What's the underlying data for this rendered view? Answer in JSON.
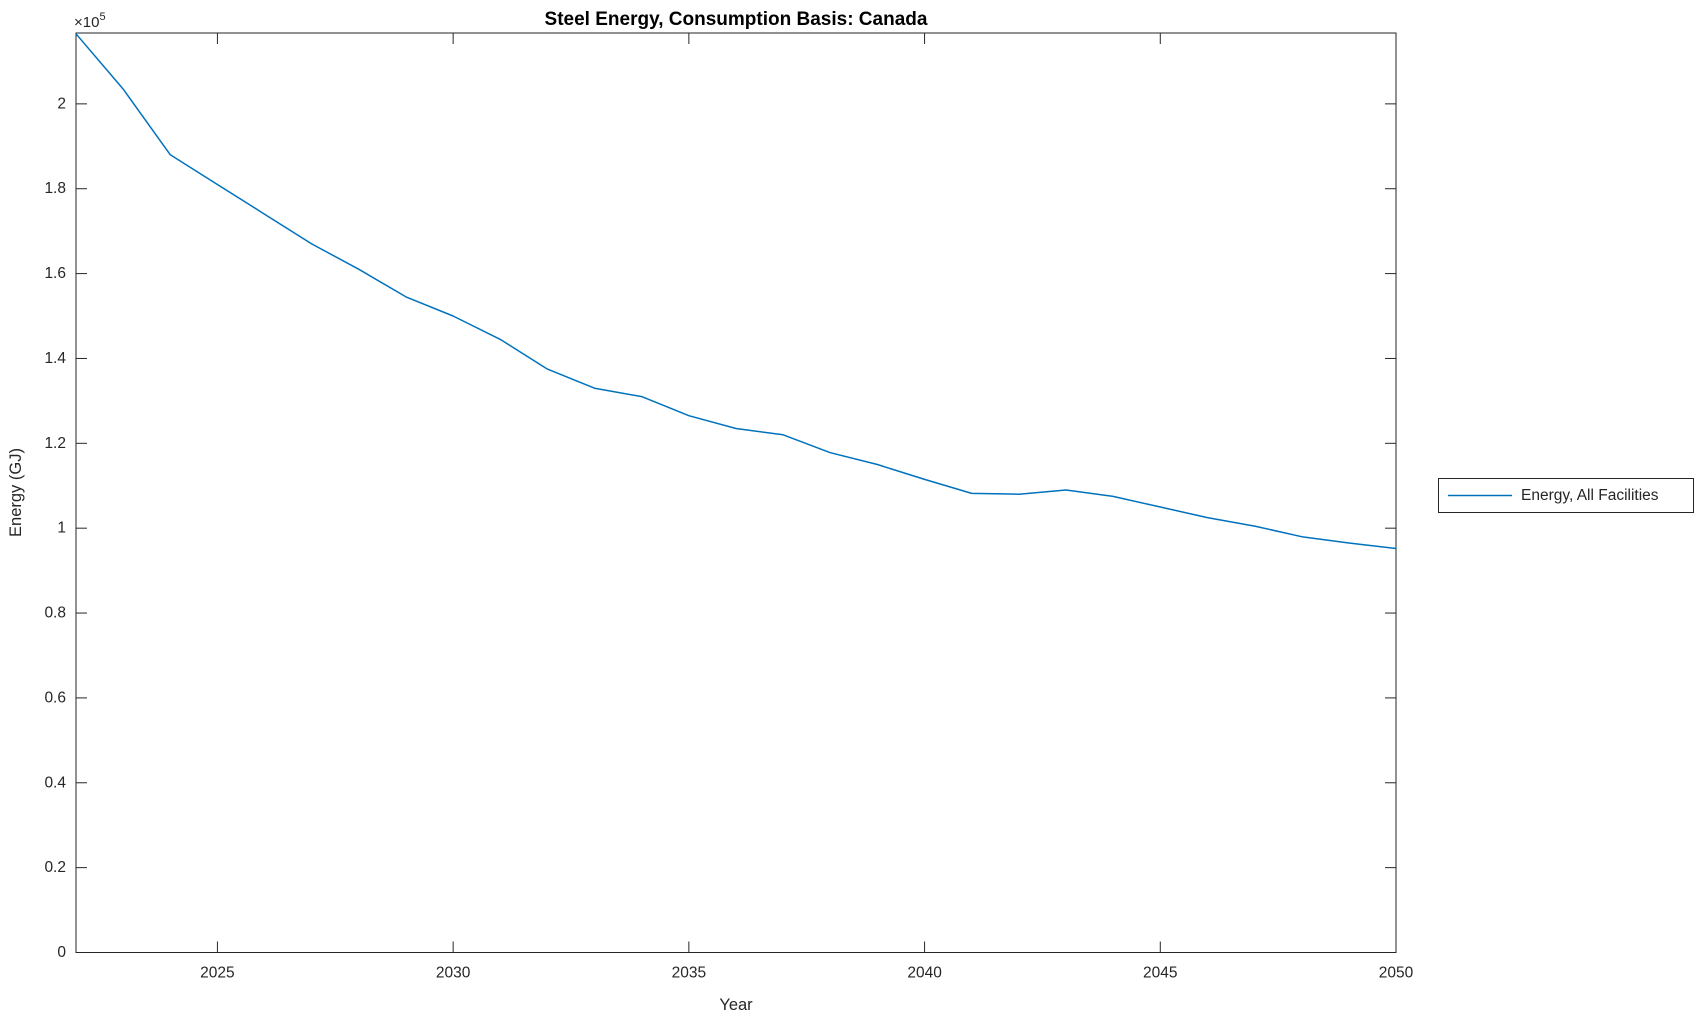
{
  "figure": {
    "background_color": "#ffffff",
    "axis_color": "#262626",
    "title_color": "#000000"
  },
  "chart_data": {
    "type": "line",
    "title": "Steel Energy, Consumption Basis: Canada",
    "xlabel": "Year",
    "ylabel": "Energy (GJ)",
    "y_multiplier_base": "×10",
    "y_multiplier_exp": "5",
    "xlim": [
      2022,
      2050
    ],
    "ylim": [
      0,
      216700
    ],
    "grid": false,
    "legend_position": "right-outside",
    "x_ticks": [
      2025,
      2030,
      2035,
      2040,
      2045,
      2050
    ],
    "y_ticks": [
      {
        "value": 0,
        "label": "0"
      },
      {
        "value": 20000,
        "label": "0.2"
      },
      {
        "value": 40000,
        "label": "0.4"
      },
      {
        "value": 60000,
        "label": "0.6"
      },
      {
        "value": 80000,
        "label": "0.8"
      },
      {
        "value": 100000,
        "label": "1"
      },
      {
        "value": 120000,
        "label": "1.2"
      },
      {
        "value": 140000,
        "label": "1.4"
      },
      {
        "value": 160000,
        "label": "1.6"
      },
      {
        "value": 180000,
        "label": "1.8"
      },
      {
        "value": 200000,
        "label": "2"
      }
    ],
    "x": [
      2022,
      2023,
      2024,
      2025,
      2026,
      2027,
      2028,
      2029,
      2030,
      2031,
      2032,
      2033,
      2034,
      2035,
      2036,
      2037,
      2038,
      2039,
      2040,
      2041,
      2042,
      2043,
      2044,
      2045,
      2046,
      2047,
      2048,
      2049,
      2050
    ],
    "series": [
      {
        "name": "Energy, All Facilities",
        "color": "#0072BD",
        "values": [
          216500,
          203500,
          188000,
          181000,
          174000,
          167000,
          161000,
          154500,
          150000,
          144500,
          137500,
          133000,
          131000,
          126500,
          123500,
          122000,
          117800,
          115000,
          111500,
          108200,
          108000,
          109000,
          107500,
          105000,
          102500,
          100500,
          98000,
          96500,
          95200
        ]
      }
    ]
  }
}
